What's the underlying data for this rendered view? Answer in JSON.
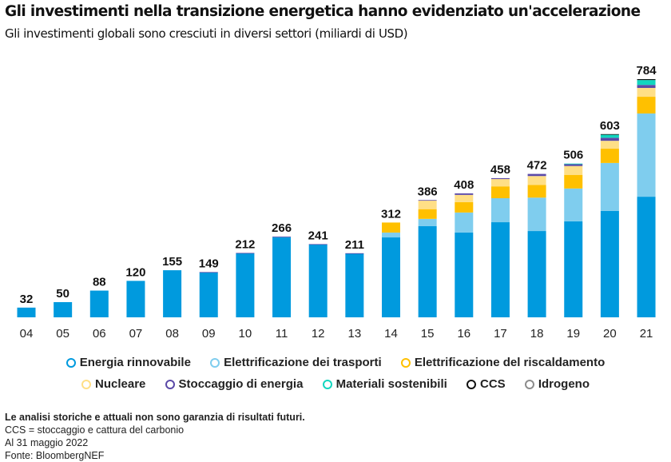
{
  "chart_data": {
    "type": "bar",
    "stacked": true,
    "title": "Gli investimenti nella transizione energetica hanno evidenziato un'accelerazione",
    "subtitle": "Gli investimenti globali sono cresciuti in diversi settori (miliardi di USD)",
    "xlabel": "",
    "ylabel": "",
    "ylim": [
      0,
      784
    ],
    "grid": false,
    "legend_position": "bottom",
    "categories": [
      "04",
      "05",
      "06",
      "07",
      "08",
      "09",
      "10",
      "11",
      "12",
      "13",
      "14",
      "15",
      "16",
      "17",
      "18",
      "19",
      "20",
      "21"
    ],
    "totals": [
      32,
      50,
      88,
      120,
      155,
      149,
      212,
      266,
      241,
      211,
      312,
      386,
      408,
      458,
      472,
      506,
      603,
      784
    ],
    "series": [
      {
        "name": "Energia rinnovabile",
        "color": "#009ADE",
        "values": [
          32,
          50,
          88,
          120,
          155,
          148,
          211,
          264,
          240,
          210,
          263,
          300,
          279,
          313,
          284,
          316,
          350,
          397
        ]
      },
      {
        "name": "Elettrificazione dei trasporti",
        "color": "#7FCDEE",
        "values": [
          0,
          0,
          0,
          0,
          0,
          0,
          0,
          1,
          0,
          0,
          16,
          24,
          66,
          79,
          110,
          108,
          158,
          274
        ]
      },
      {
        "name": "Elettrificazione del riscaldamento",
        "color": "#FFC000",
        "values": [
          0,
          0,
          0,
          0,
          0,
          0,
          0,
          0,
          0,
          0,
          33,
          32,
          34,
          39,
          42,
          45,
          47,
          55
        ]
      },
      {
        "name": "Nucleare",
        "color": "#FFDF86",
        "values": [
          0,
          0,
          0,
          0,
          0,
          0,
          0,
          0,
          0,
          0,
          0,
          28,
          24,
          24,
          29,
          29,
          26,
          29
        ]
      },
      {
        "name": "Stoccaggio di energia",
        "color": "#5B4AA8",
        "values": [
          0,
          0,
          0,
          0,
          0,
          1,
          1,
          1,
          1,
          1,
          0,
          2,
          5,
          3,
          7,
          7,
          10,
          10
        ]
      },
      {
        "name": "Materiali sostenibili",
        "color": "#11D6BF",
        "values": [
          0,
          0,
          0,
          0,
          0,
          0,
          0,
          0,
          0,
          0,
          0,
          0,
          0,
          0,
          0,
          1,
          10,
          16
        ]
      },
      {
        "name": "CCS",
        "color": "#111111",
        "values": [
          0,
          0,
          0,
          0,
          0,
          0,
          0,
          0,
          0,
          0,
          0,
          0,
          0,
          0,
          0,
          0,
          2,
          3
        ]
      },
      {
        "name": "Idrogeno",
        "color": "#8C8C8C",
        "values": [
          0,
          0,
          0,
          0,
          0,
          0,
          0,
          0,
          0,
          0,
          0,
          0,
          0,
          0,
          0,
          0,
          0,
          0
        ]
      }
    ]
  },
  "header": {
    "title": "Gli investimenti nella transizione energetica hanno evidenziato un'accelerazione",
    "subtitle": "Gli investimenti globali sono cresciuti in diversi settori (miliardi di USD)"
  },
  "legend": {
    "row1": [
      {
        "label": "Energia rinnovabile",
        "color": "#009ADE"
      },
      {
        "label": "Elettrificazione dei trasporti",
        "color": "#7FCDEE"
      },
      {
        "label": "Elettrificazione del riscaldamento",
        "color": "#FFC000"
      }
    ],
    "row2": [
      {
        "label": "Nucleare",
        "color": "#FFDF86"
      },
      {
        "label": "Stoccaggio di energia",
        "color": "#5B4AA8"
      },
      {
        "label": "Materiali sostenibili",
        "color": "#11D6BF"
      },
      {
        "label": "CCS",
        "color": "#111111"
      },
      {
        "label": "Idrogeno",
        "color": "#8C8C8C"
      }
    ]
  },
  "notes": {
    "disclaimer": "Le analisi storiche e attuali non sono garanzia di risultati futuri.",
    "ccs_definition": "CCS = stoccaggio e cattura del carbonio",
    "date": "Al 31 maggio 2022",
    "source": "Fonte: BloombergNEF"
  }
}
